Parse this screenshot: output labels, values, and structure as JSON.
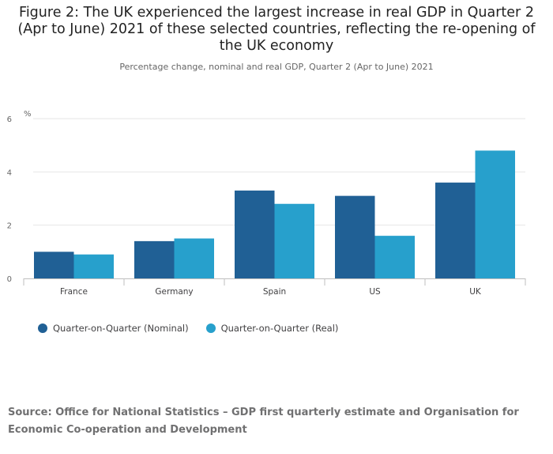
{
  "title": "Figure 2: The UK experienced the largest increase in real GDP in Quarter 2 (Apr to June) 2021 of these selected countries, reflecting the re-opening of the UK economy",
  "subtitle": "Percentage change, nominal and real GDP, Quarter 2 (Apr to June) 2021",
  "source": "Source: Office for National Statistics – GDP first quarterly estimate and Organisation for Economic Co-operation and Development",
  "chart_data": {
    "type": "bar",
    "categories": [
      "France",
      "Germany",
      "Spain",
      "US",
      "UK"
    ],
    "series": [
      {
        "name": "Quarter-on-Quarter (Nominal)",
        "color": "#206095",
        "values": [
          1.0,
          1.4,
          3.3,
          3.1,
          3.6
        ]
      },
      {
        "name": "Quarter-on-Quarter (Real)",
        "color": "#27a0cc",
        "values": [
          0.9,
          1.5,
          2.8,
          1.6,
          4.8
        ]
      }
    ],
    "ylabel": "%",
    "ylim": [
      0,
      6
    ],
    "yticks": [
      0,
      2,
      4,
      6
    ],
    "grid": true,
    "legend_position": "bottom-left"
  }
}
